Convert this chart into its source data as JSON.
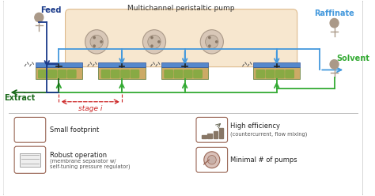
{
  "title": "Multichannel peristaltic pump",
  "feed_label": "Feed",
  "raffinate_label": "Raffinate",
  "extract_label": "Extract",
  "solvent_label": "Solvent",
  "stage_label": "stage i",
  "blue_dark": "#1a3a8a",
  "blue_light": "#4499dd",
  "green_dark": "#1a6a1a",
  "green_light": "#33aa33",
  "red_stage": "#cc2222",
  "pump_box_fill": "#f5dfc0",
  "pump_box_edge": "#d4a870",
  "chip_blue": "#5588cc",
  "chip_green": "#88aa44",
  "chip_tan": "#ccaa66",
  "icon_edge": "#996655",
  "icon_fill": "#ffffff",
  "text_color": "#222222",
  "border_color": "#bbbbbb",
  "bg_color": "#f8f8f8"
}
